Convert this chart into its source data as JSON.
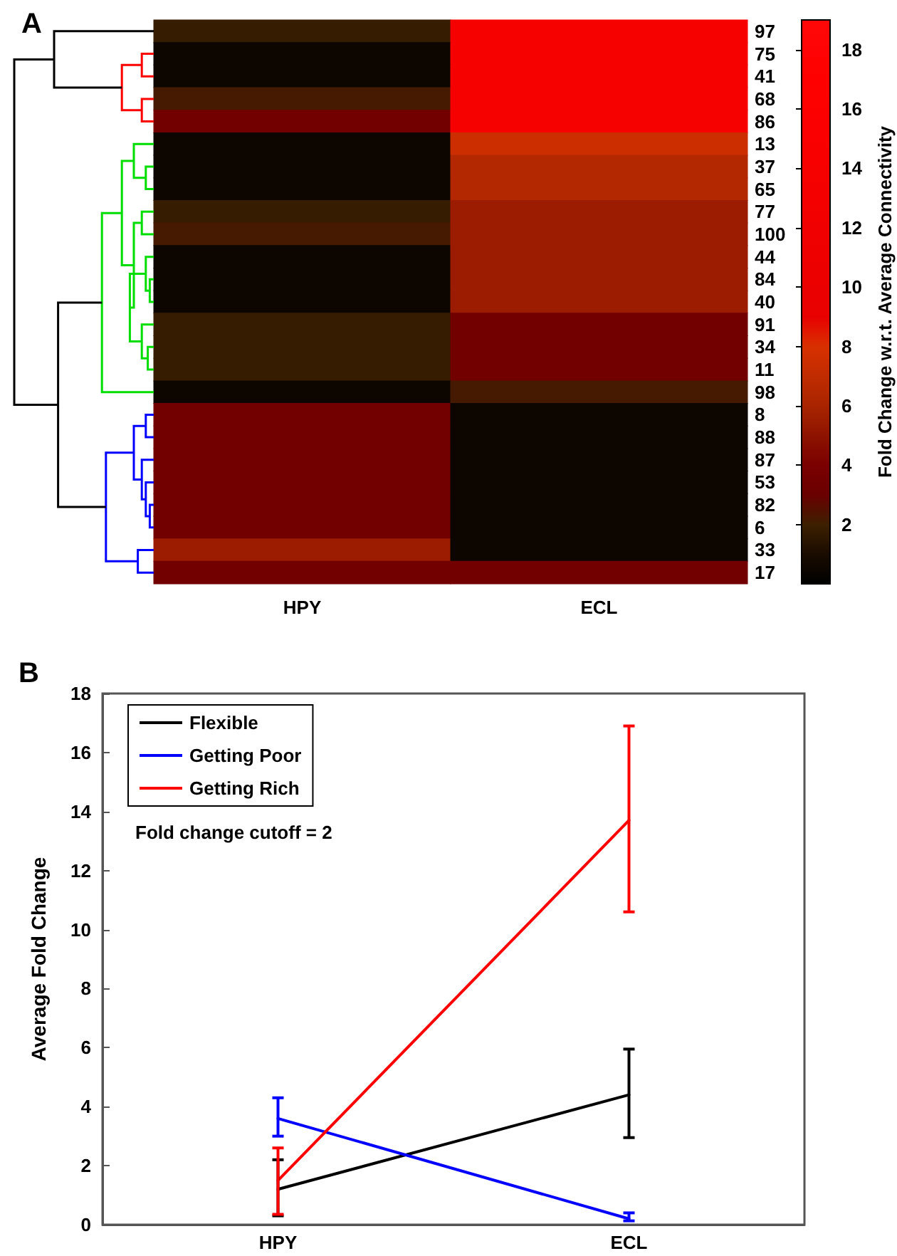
{
  "chart_data": [
    {
      "type": "heatmap",
      "title": "A",
      "categories": [
        "HPY",
        "ECL"
      ],
      "y_categories": [
        "97",
        "75",
        "41",
        "68",
        "86",
        "13",
        "37",
        "65",
        "77",
        "100",
        "44",
        "84",
        "40",
        "91",
        "34",
        "11",
        "98",
        "8",
        "88",
        "87",
        "53",
        "82",
        "6",
        "33",
        "17"
      ],
      "cells": [
        [
          1.8,
          14
        ],
        [
          0.5,
          14
        ],
        [
          0.5,
          14
        ],
        [
          2.2,
          14
        ],
        [
          3.5,
          14
        ],
        [
          0.5,
          7.5
        ],
        [
          0.5,
          6.5
        ],
        [
          0.5,
          6.5
        ],
        [
          1.8,
          5.5
        ],
        [
          2.2,
          5.5
        ],
        [
          0.5,
          5.5
        ],
        [
          0.5,
          5.5
        ],
        [
          0.5,
          5.5
        ],
        [
          1.8,
          3.5
        ],
        [
          1.8,
          3.5
        ],
        [
          1.8,
          3.5
        ],
        [
          0.5,
          2.2
        ],
        [
          3.5,
          0.5
        ],
        [
          3.5,
          0.5
        ],
        [
          3.5,
          0.5
        ],
        [
          3.5,
          0.5
        ],
        [
          3.5,
          0.5
        ],
        [
          3.5,
          0.5
        ],
        [
          5.5,
          0.5
        ],
        [
          3.5,
          3.5
        ]
      ],
      "clabel": "Fold Change w.r.t. Average Connectivity",
      "clim": [
        0,
        19
      ],
      "cticks": [
        2,
        4,
        6,
        8,
        10,
        12,
        14,
        16,
        18
      ]
    },
    {
      "type": "line",
      "title": "B",
      "categories": [
        "HPY",
        "ECL"
      ],
      "ylabel": "Average Fold Change",
      "series": [
        {
          "name": "Flexible",
          "color": "#000000",
          "values": [
            1.2,
            4.4
          ],
          "errors": [
            [
              0.3,
              2.2
            ],
            [
              2.95,
              5.95
            ]
          ]
        },
        {
          "name": "Getting Poor",
          "color": "#0000ff",
          "values": [
            3.6,
            0.2
          ],
          "errors": [
            [
              3.0,
              4.3
            ],
            [
              0.13,
              0.4
            ]
          ]
        },
        {
          "name": "Getting Rich",
          "color": "#ff0000",
          "values": [
            1.5,
            13.7
          ],
          "errors": [
            [
              0.35,
              2.6
            ],
            [
              10.6,
              16.9
            ]
          ]
        }
      ],
      "ylim": [
        0,
        18
      ],
      "yticks": [
        0,
        2,
        4,
        6,
        8,
        10,
        12,
        14,
        16,
        18
      ],
      "legend": "top left",
      "grid": false,
      "marker": "none",
      "line_style": "solid",
      "annotations": [
        "Fold change cutoff = 2"
      ]
    }
  ]
}
